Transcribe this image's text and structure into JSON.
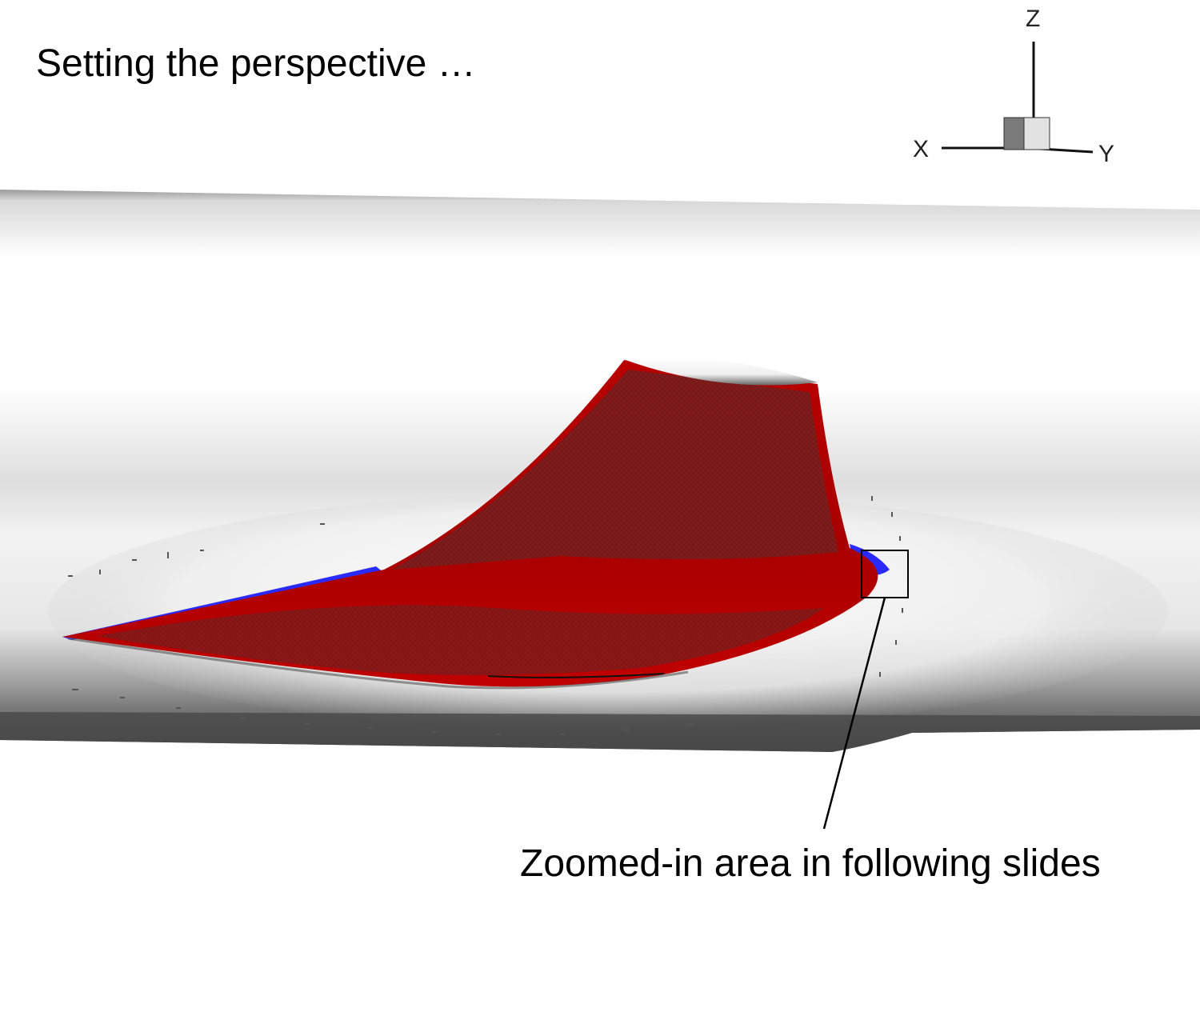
{
  "slide": {
    "title": "Setting the perspective …",
    "callout_label": "Zoomed-in area in following slides"
  },
  "axes_triad": {
    "z_label": "Z",
    "x_label": "X",
    "y_label": "Y"
  },
  "colors": {
    "background": "#ffffff",
    "fin_surface": "#b30000",
    "fin_mesh": "#7a1f1f",
    "leading_edge_highlight": "#2a2aff",
    "fuselage_light": "#f2f2f2",
    "fuselage_dark": "#4a4a4a",
    "callout_box": "#000000"
  }
}
